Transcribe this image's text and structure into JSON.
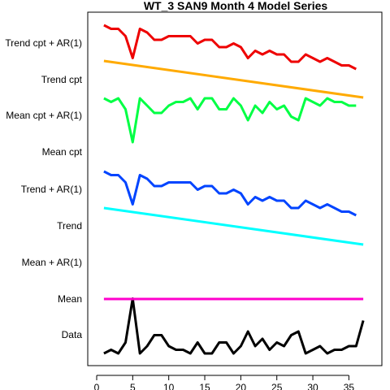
{
  "chart_data": {
    "type": "line",
    "title": "WT_3 SAN9 Month 4 Model Series",
    "xlabel": "",
    "ylabel": "",
    "xlim": [
      0,
      38
    ],
    "x_ticks": [
      0,
      5,
      10,
      15,
      20,
      25,
      30,
      35
    ],
    "grid": false,
    "legend": "none",
    "series": [
      {
        "name": "Data",
        "color": "#000000",
        "offset": 0,
        "x_start": 1,
        "values": [
          0.0,
          0.1,
          0.0,
          0.3,
          1.5,
          0.0,
          0.2,
          0.5,
          0.5,
          0.2,
          0.1,
          0.1,
          0.0,
          0.3,
          0.0,
          0.0,
          0.3,
          0.3,
          0.0,
          0.2,
          0.6,
          0.2,
          0.4,
          0.1,
          0.3,
          0.2,
          0.5,
          0.6,
          0.0,
          0.1,
          0.2,
          0.0,
          0.1,
          0.1,
          0.2,
          0.2,
          0.9
        ]
      },
      {
        "name": "Mean",
        "color": "#ff00cc",
        "offset": 1,
        "x_start": 1,
        "values": [
          0.0,
          0.0
        ]
      },
      {
        "name": "Mean + AR(1)",
        "color": "#999999",
        "offset": 2,
        "x_start": 1,
        "values": []
      },
      {
        "name": "Trend",
        "color": "#00ffff",
        "offset": 3,
        "x_start": 1,
        "values": [
          0.0,
          -1.0
        ]
      },
      {
        "name": "Trend + AR(1)",
        "color": "#0044ff",
        "offset": 4,
        "x_start": 1,
        "values": [
          0.0,
          -0.1,
          -0.1,
          -0.3,
          -0.9,
          -0.1,
          -0.2,
          -0.4,
          -0.4,
          -0.3,
          -0.3,
          -0.3,
          -0.3,
          -0.5,
          -0.4,
          -0.4,
          -0.6,
          -0.6,
          -0.5,
          -0.6,
          -0.9,
          -0.7,
          -0.8,
          -0.7,
          -0.8,
          -0.8,
          -1.0,
          -1.0,
          -0.8,
          -0.9,
          -1.0,
          -0.9,
          -1.0,
          -1.1,
          -1.1,
          -1.2
        ]
      },
      {
        "name": "Mean cpt",
        "color": "#999999",
        "offset": 5,
        "x_start": 1,
        "values": []
      },
      {
        "name": "Mean cpt + AR(1)",
        "color": "#00ff44",
        "offset": 6,
        "x_start": 1,
        "values": [
          0.0,
          -0.1,
          0.0,
          -0.3,
          -1.2,
          0.0,
          -0.2,
          -0.4,
          -0.4,
          -0.2,
          -0.1,
          -0.1,
          0.0,
          -0.3,
          0.0,
          0.0,
          -0.3,
          -0.3,
          0.0,
          -0.2,
          -0.6,
          -0.2,
          -0.4,
          -0.1,
          -0.3,
          -0.2,
          -0.5,
          -0.6,
          0.0,
          -0.1,
          -0.2,
          0.0,
          -0.1,
          -0.1,
          -0.2,
          -0.2
        ]
      },
      {
        "name": "Trend cpt",
        "color": "#ffaa00",
        "offset": 7,
        "x_start": 1,
        "values": [
          0.0,
          -1.0
        ]
      },
      {
        "name": "Trend cpt + AR(1)",
        "color": "#ee0000",
        "offset": 8,
        "x_start": 1,
        "values": [
          0.0,
          -0.1,
          -0.1,
          -0.3,
          -0.9,
          -0.1,
          -0.2,
          -0.4,
          -0.4,
          -0.3,
          -0.3,
          -0.3,
          -0.3,
          -0.5,
          -0.4,
          -0.4,
          -0.6,
          -0.6,
          -0.5,
          -0.6,
          -0.9,
          -0.7,
          -0.8,
          -0.7,
          -0.8,
          -0.8,
          -1.0,
          -1.0,
          -0.8,
          -0.9,
          -1.0,
          -0.9,
          -1.0,
          -1.1,
          -1.1,
          -1.2
        ]
      }
    ]
  }
}
